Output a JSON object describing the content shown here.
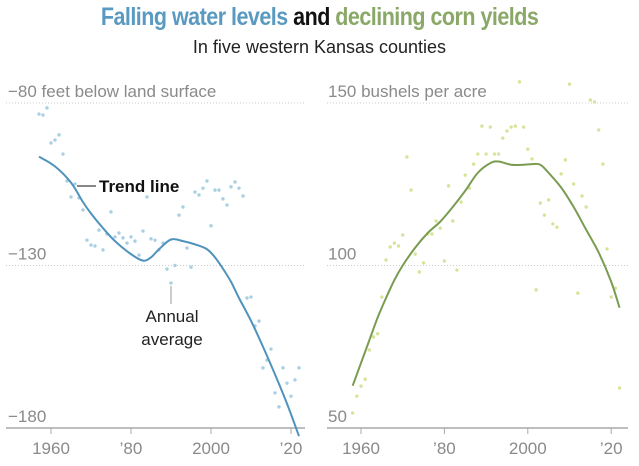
{
  "header": {
    "title_part1": "Falling water levels",
    "title_part2": " and ",
    "title_part3": "declining corn yields",
    "subtitle": "In five western Kansas counties"
  },
  "colors": {
    "water": "#4f93bd",
    "water_points": "#a9cfe3",
    "corn": "#7a9c51",
    "corn_points": "#d6e49a",
    "axis": "#a8a8a8",
    "grid": "#cccccc",
    "label": "#8a8a8a"
  },
  "chart_data": [
    {
      "type": "scatter",
      "title": "Falling water levels",
      "ylabel": "feet below land surface",
      "y_ticks": [
        {
          "value": -80,
          "label": "−80 feet below land surface"
        },
        {
          "value": -130,
          "label": "−130"
        },
        {
          "value": -180,
          "label": "−180"
        }
      ],
      "x_ticks": [
        {
          "value": 1960,
          "label": "1960"
        },
        {
          "value": 1980,
          "label": "’80"
        },
        {
          "value": 2000,
          "label": "2000"
        },
        {
          "value": 2020,
          "label": "’20"
        }
      ],
      "xlim": [
        1951,
        2024
      ],
      "ylim": [
        -180,
        -80
      ],
      "grid": true,
      "annotations": {
        "trend_label": "Trend line",
        "points_label_line1": "Annual",
        "points_label_line2": "average",
        "points_label_year": 1990
      },
      "series": [
        {
          "name": "Annual average",
          "kind": "points",
          "x": [
            1957,
            1958,
            1959,
            1960,
            1961,
            1962,
            1963,
            1964,
            1965,
            1966,
            1967,
            1968,
            1969,
            1970,
            1971,
            1972,
            1973,
            1974,
            1975,
            1976,
            1977,
            1978,
            1979,
            1980,
            1981,
            1982,
            1983,
            1984,
            1985,
            1986,
            1987,
            1988,
            1989,
            1990,
            1991,
            1992,
            1993,
            1994,
            1995,
            1996,
            1997,
            1998,
            1999,
            2000,
            2001,
            2002,
            2003,
            2004,
            2005,
            2006,
            2007,
            2008,
            2009,
            2010,
            2011,
            2012,
            2013,
            2014,
            2015,
            2016,
            2017,
            2018,
            2019,
            2020,
            2021,
            2022
          ],
          "y": [
            -83.4,
            -83.7,
            -81.5,
            -92.3,
            -91.4,
            -89.8,
            -95.7,
            -104,
            -108.9,
            -104.9,
            -109.2,
            -112.9,
            -122.2,
            -123.7,
            -124,
            -119.1,
            -125.2,
            -120.3,
            -113.5,
            -121.2,
            -120,
            -121.5,
            -123.1,
            -121.2,
            -122.5,
            -126.8,
            -119.4,
            -108.9,
            -121.8,
            -122.2,
            -125.2,
            -123.1,
            -131.1,
            -135.4,
            -130,
            -114.5,
            -112,
            -124.6,
            -130.5,
            -107.4,
            -108.3,
            -106.2,
            -104,
            -117.8,
            -106.8,
            -106.8,
            -109.5,
            -111.4,
            -105.8,
            -104.3,
            -106.2,
            -108.6,
            -140,
            -139.7,
            -148.6,
            -147.1,
            -161.5,
            -159.1,
            -155.7,
            -169.2,
            -173.5,
            -161.5,
            -166.2,
            -170.2,
            -165.2,
            -161.5
          ]
        },
        {
          "name": "Trend line",
          "kind": "line",
          "x": [
            1957,
            1961,
            1965,
            1968,
            1970,
            1973,
            1976,
            1980,
            1983,
            1985,
            1987,
            1990,
            1993,
            1996,
            1999,
            2001,
            2003,
            2005,
            2007,
            2010,
            2013,
            2016,
            2019,
            2022
          ],
          "y": [
            -96.5,
            -99.5,
            -104.5,
            -110.5,
            -114,
            -118.5,
            -122.5,
            -126.5,
            -128.5,
            -127.5,
            -125,
            -122,
            -122.5,
            -123.5,
            -125,
            -127.5,
            -131,
            -135,
            -140,
            -147,
            -155,
            -163.5,
            -172.5,
            -182.5
          ]
        }
      ]
    },
    {
      "type": "scatter",
      "title": "Declining corn yields",
      "ylabel": "bushels per acre",
      "y_ticks": [
        {
          "value": 150,
          "label": "150 bushels per acre"
        },
        {
          "value": 100,
          "label": "100"
        },
        {
          "value": 50,
          "label": "50"
        }
      ],
      "x_ticks": [
        {
          "value": 1960,
          "label": "1960"
        },
        {
          "value": 1980,
          "label": "’80"
        },
        {
          "value": 2000,
          "label": "2000"
        },
        {
          "value": 2020,
          "label": "’20"
        }
      ],
      "xlim": [
        1951,
        2024
      ],
      "ylim": [
        50,
        150
      ],
      "grid": true,
      "series": [
        {
          "name": "Annual average",
          "kind": "points",
          "x": [
            1958,
            1959,
            1960,
            1961,
            1962,
            1963,
            1964,
            1965,
            1966,
            1967,
            1968,
            1969,
            1970,
            1971,
            1972,
            1973,
            1974,
            1975,
            1976,
            1977,
            1978,
            1979,
            1980,
            1981,
            1982,
            1983,
            1984,
            1985,
            1986,
            1987,
            1988,
            1989,
            1990,
            1991,
            1992,
            1993,
            1994,
            1995,
            1996,
            1997,
            1998,
            1999,
            2000,
            2001,
            2002,
            2003,
            2004,
            2005,
            2006,
            2007,
            2008,
            2009,
            2010,
            2011,
            2012,
            2013,
            2014,
            2015,
            2016,
            2017,
            2018,
            2019,
            2020,
            2021,
            2022
          ],
          "y": [
            54.6,
            59.8,
            62.9,
            65,
            74,
            78,
            79,
            90.3,
            101.7,
            105.7,
            106.9,
            106,
            109.4,
            133.4,
            123.2,
            103.5,
            98,
            100.8,
            109.7,
            109.7,
            113.7,
            111.5,
            101.4,
            124.5,
            113.7,
            98.6,
            119.5,
            127.8,
            123.8,
            131.2,
            134.3,
            142.9,
            134.3,
            142.6,
            134.3,
            134.3,
            139.2,
            141.4,
            142.6,
            142.9,
            156.5,
            142.6,
            135.8,
            132.8,
            92.5,
            119.2,
            115.5,
            120.2,
            112.8,
            111.8,
            128.2,
            132.5,
            155.8,
            125.1,
            91.5,
            121.4,
            118,
            150.9,
            150.3,
            141.7,
            131.2,
            105.1,
            90.3,
            93,
            62.3
          ]
        },
        {
          "name": "Trend line",
          "kind": "line",
          "x": [
            1958,
            1960,
            1962,
            1964,
            1966,
            1968,
            1970,
            1973,
            1976,
            1979,
            1982,
            1985,
            1988,
            1991,
            1993,
            1996,
            1999,
            2001,
            2003,
            2005,
            2008,
            2011,
            2014,
            2017,
            2020,
            2022
          ],
          "y": [
            63,
            70,
            77,
            84,
            90,
            95.5,
            100,
            105.5,
            110,
            113.5,
            118,
            123,
            128.5,
            131.5,
            132,
            131,
            131,
            131.2,
            131,
            128.5,
            124,
            118,
            111,
            104,
            95,
            87
          ]
        }
      ]
    }
  ]
}
